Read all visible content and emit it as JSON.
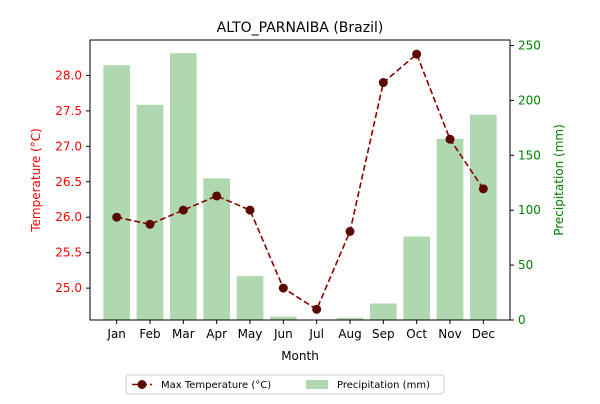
{
  "chart_data": {
    "type": "bar+line",
    "title": "ALTO_PARNAIBA (Brazil)",
    "xlabel": "Month",
    "categories": [
      "Jan",
      "Feb",
      "Mar",
      "Apr",
      "May",
      "Jun",
      "Jul",
      "Aug",
      "Sep",
      "Oct",
      "Nov",
      "Dec"
    ],
    "y_left": {
      "label": "Temperature (°C)",
      "range": [
        24.55,
        28.5
      ],
      "ticks": [
        "25.0",
        "25.5",
        "26.0",
        "26.5",
        "27.0",
        "27.5",
        "28.0"
      ],
      "color": "#ff0000"
    },
    "y_right": {
      "label": "Precipitation (mm)",
      "range": [
        0,
        255
      ],
      "ticks": [
        "0",
        "50",
        "100",
        "150",
        "200",
        "250"
      ],
      "color": "#008000"
    },
    "series": [
      {
        "name": "Max Temperature (°C)",
        "kind": "line",
        "axis": "left",
        "color": "#8b0000",
        "marker_color": "#5a0a00",
        "line_style": "dashed",
        "values": [
          26.0,
          25.9,
          26.1,
          26.3,
          26.1,
          25.0,
          24.7,
          25.8,
          27.9,
          28.3,
          27.1,
          26.4
        ]
      },
      {
        "name": "Precipitation (mm)",
        "kind": "bar",
        "axis": "right",
        "color": "#b0d8b0",
        "values": [
          232,
          196,
          243,
          129,
          40,
          3,
          0,
          2,
          15,
          76,
          165,
          187
        ]
      }
    ],
    "legend": {
      "placement": "bottom-center"
    },
    "grid": false
  }
}
